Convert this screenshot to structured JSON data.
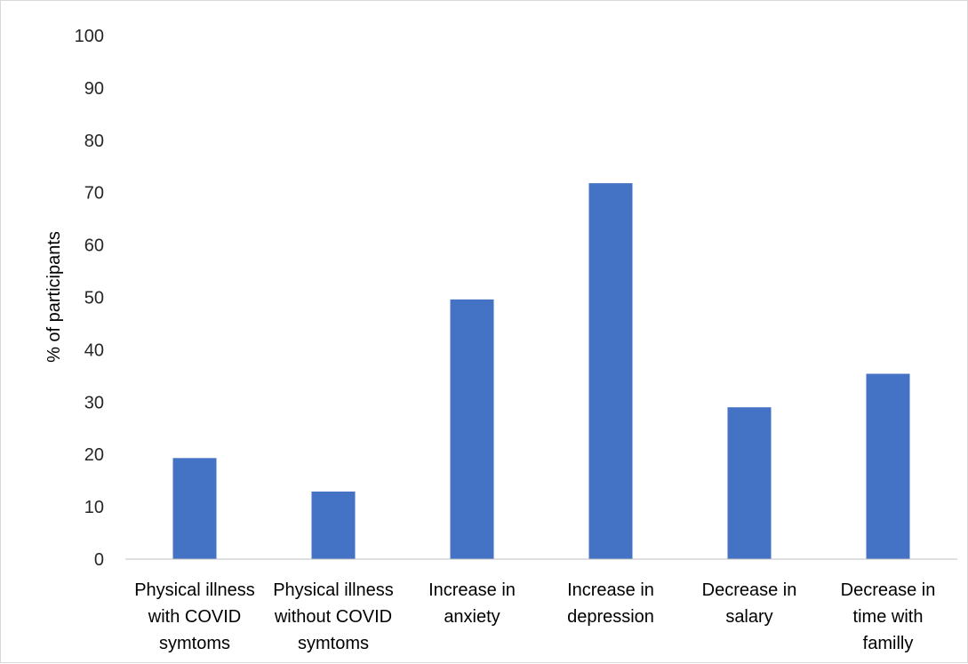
{
  "colors": {
    "bar": "#4472C4",
    "axis": "#bfbfbf",
    "frame": "#d9d9d9",
    "text": "#000000"
  },
  "chart_data": {
    "type": "bar",
    "categories": [
      [
        "Physical illness",
        "with COVID",
        "symtoms"
      ],
      [
        "Physical illness",
        "without COVID",
        "symtoms"
      ],
      [
        "Increase in",
        "anxiety"
      ],
      [
        "Increase in",
        "depression"
      ],
      [
        "Decrease in",
        "salary"
      ],
      [
        "Decrease in",
        "time with",
        "familly"
      ]
    ],
    "values": [
      19.3,
      12.9,
      49.6,
      71.8,
      29.0,
      35.4
    ],
    "ylabel": "% of participants",
    "xlabel": "",
    "ylim": [
      0,
      100
    ],
    "yticks": [
      0,
      10,
      20,
      30,
      40,
      50,
      60,
      70,
      80,
      90,
      100
    ],
    "grid": false,
    "legend": "none"
  }
}
